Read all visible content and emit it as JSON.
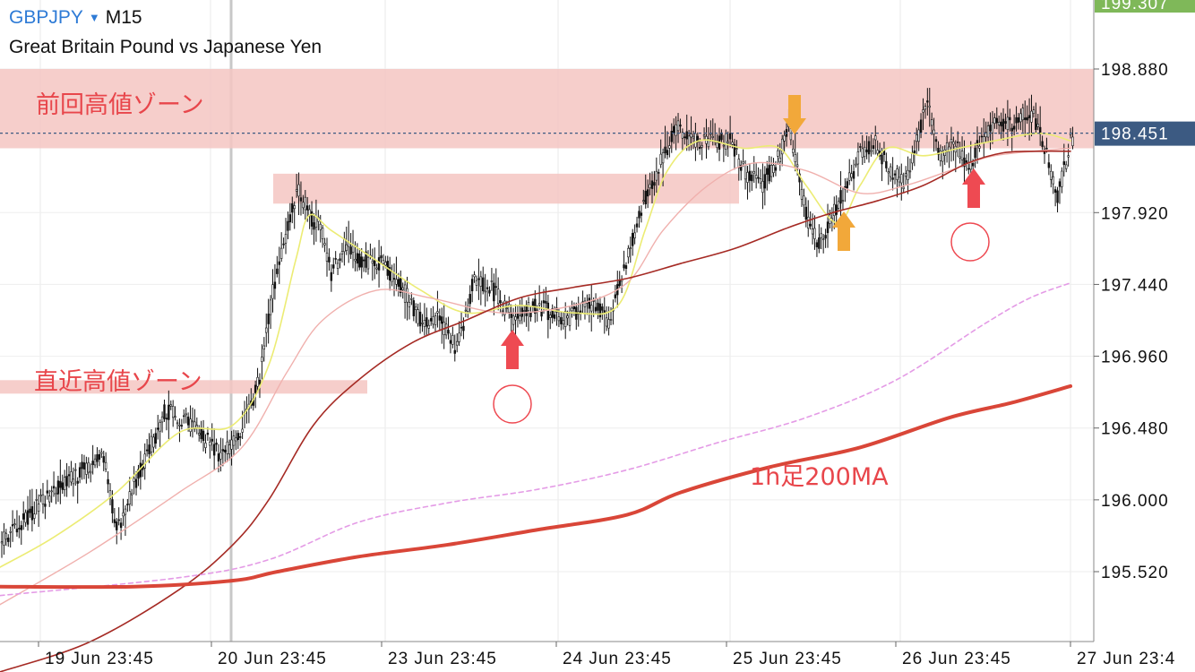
{
  "header": {
    "symbol": "GBPJPY",
    "timeframe": "M15",
    "description": "Great Britain Pound vs Japanese Yen",
    "dropdown_icon": "caret-down-icon"
  },
  "colors": {
    "zone": "#f4c6c2",
    "annotation_text": "#e8464b",
    "red_arrow": "#ee4a52",
    "orange_arrow": "#f2a83a",
    "ma_short": "#ecec74",
    "ma_long": "#a52a24",
    "ma_1h200": "#d94638",
    "ma_dashed": "#e49be6",
    "current_price_box": "#3c5a82",
    "top_price_box": "#7fb859"
  },
  "chart_data": {
    "type": "candlestick",
    "symbol": "GBPJPY",
    "timeframe": "M15",
    "y_axis": {
      "min": 195.2,
      "max": 199.3,
      "ticks": [
        "198.880",
        "197.920",
        "197.440",
        "196.960",
        "196.480",
        "196.000",
        "195.520"
      ]
    },
    "x_axis": {
      "labels": [
        "19 Jun 23:45",
        "20 Jun 23:45",
        "23 Jun 23:45",
        "24 Jun 23:45",
        "25 Jun 23:45",
        "26 Jun 23:45",
        "27 Jun 23:4"
      ]
    },
    "current_price": "198.451",
    "top_price": "199.307",
    "price_path": [
      [
        0,
        195.7
      ],
      [
        50,
        196.0
      ],
      [
        115,
        196.3
      ],
      [
        130,
        195.8
      ],
      [
        185,
        196.6
      ],
      [
        215,
        196.5
      ],
      [
        245,
        196.3
      ],
      [
        265,
        196.4
      ],
      [
        290,
        196.8
      ],
      [
        305,
        197.4
      ],
      [
        325,
        197.9
      ],
      [
        332,
        198.1
      ],
      [
        345,
        197.9
      ],
      [
        360,
        197.8
      ],
      [
        370,
        197.5
      ],
      [
        385,
        197.7
      ],
      [
        400,
        197.6
      ],
      [
        420,
        197.6
      ],
      [
        440,
        197.5
      ],
      [
        470,
        197.2
      ],
      [
        490,
        197.2
      ],
      [
        510,
        197.0
      ],
      [
        530,
        197.5
      ],
      [
        550,
        197.4
      ],
      [
        575,
        197.2
      ],
      [
        600,
        197.3
      ],
      [
        630,
        197.2
      ],
      [
        660,
        197.3
      ],
      [
        680,
        197.2
      ],
      [
        700,
        197.6
      ],
      [
        720,
        198.0
      ],
      [
        740,
        198.3
      ],
      [
        755,
        198.5
      ],
      [
        775,
        198.4
      ],
      [
        795,
        198.4
      ],
      [
        815,
        198.4
      ],
      [
        830,
        198.2
      ],
      [
        850,
        198.1
      ],
      [
        870,
        198.3
      ],
      [
        882,
        198.5
      ],
      [
        890,
        198.2
      ],
      [
        900,
        197.9
      ],
      [
        915,
        197.7
      ],
      [
        930,
        197.9
      ],
      [
        945,
        198.1
      ],
      [
        960,
        198.3
      ],
      [
        975,
        198.4
      ],
      [
        995,
        198.2
      ],
      [
        1010,
        198.1
      ],
      [
        1020,
        198.3
      ],
      [
        1035,
        198.7
      ],
      [
        1050,
        198.3
      ],
      [
        1065,
        198.4
      ],
      [
        1080,
        198.2
      ],
      [
        1095,
        198.4
      ],
      [
        1110,
        198.5
      ],
      [
        1130,
        198.5
      ],
      [
        1150,
        198.6
      ],
      [
        1165,
        198.4
      ],
      [
        1180,
        198.0
      ],
      [
        1195,
        198.4
      ]
    ],
    "moving_averages": [
      {
        "style": "short",
        "points": [
          [
            0,
            195.55
          ],
          [
            60,
            195.75
          ],
          [
            130,
            196.05
          ],
          [
            200,
            196.45
          ],
          [
            260,
            196.5
          ],
          [
            300,
            196.9
          ],
          [
            330,
            197.6
          ],
          [
            345,
            197.9
          ],
          [
            370,
            197.8
          ],
          [
            420,
            197.6
          ],
          [
            470,
            197.4
          ],
          [
            520,
            197.25
          ],
          [
            580,
            197.3
          ],
          [
            640,
            197.25
          ],
          [
            690,
            197.3
          ],
          [
            720,
            197.8
          ],
          [
            745,
            198.2
          ],
          [
            780,
            198.4
          ],
          [
            830,
            198.35
          ],
          [
            870,
            198.35
          ],
          [
            900,
            198.1
          ],
          [
            935,
            197.85
          ],
          [
            960,
            198.1
          ],
          [
            990,
            198.35
          ],
          [
            1030,
            198.3
          ],
          [
            1070,
            198.35
          ],
          [
            1110,
            198.4
          ],
          [
            1160,
            198.45
          ],
          [
            1195,
            198.4
          ]
        ]
      },
      {
        "style": "medium",
        "points": [
          [
            0,
            195.3
          ],
          [
            100,
            195.65
          ],
          [
            200,
            196.05
          ],
          [
            270,
            196.35
          ],
          [
            320,
            196.85
          ],
          [
            360,
            197.2
          ],
          [
            420,
            197.4
          ],
          [
            480,
            197.35
          ],
          [
            560,
            197.25
          ],
          [
            640,
            197.3
          ],
          [
            700,
            197.45
          ],
          [
            740,
            197.8
          ],
          [
            790,
            198.1
          ],
          [
            840,
            198.25
          ],
          [
            900,
            198.2
          ],
          [
            960,
            198.05
          ],
          [
            1010,
            198.1
          ],
          [
            1060,
            198.2
          ],
          [
            1110,
            198.3
          ],
          [
            1195,
            198.35
          ]
        ]
      },
      {
        "style": "long",
        "points": [
          [
            0,
            194.85
          ],
          [
            100,
            195.05
          ],
          [
            200,
            195.4
          ],
          [
            260,
            195.7
          ],
          [
            300,
            196.0
          ],
          [
            350,
            196.5
          ],
          [
            400,
            196.8
          ],
          [
            460,
            197.05
          ],
          [
            520,
            197.2
          ],
          [
            580,
            197.35
          ],
          [
            640,
            197.42
          ],
          [
            700,
            197.48
          ],
          [
            760,
            197.58
          ],
          [
            820,
            197.68
          ],
          [
            880,
            197.82
          ],
          [
            930,
            197.92
          ],
          [
            980,
            198.0
          ],
          [
            1030,
            198.1
          ],
          [
            1080,
            198.25
          ],
          [
            1120,
            198.32
          ],
          [
            1160,
            198.33
          ],
          [
            1195,
            198.33
          ]
        ]
      },
      {
        "style": "dashed",
        "points": [
          [
            0,
            195.36
          ],
          [
            200,
            195.48
          ],
          [
            300,
            195.6
          ],
          [
            400,
            195.85
          ],
          [
            500,
            195.98
          ],
          [
            600,
            196.07
          ],
          [
            700,
            196.2
          ],
          [
            800,
            196.38
          ],
          [
            900,
            196.55
          ],
          [
            1000,
            196.8
          ],
          [
            1100,
            197.18
          ],
          [
            1150,
            197.35
          ],
          [
            1195,
            197.45
          ]
        ]
      },
      {
        "style": "h1_200",
        "points": [
          [
            0,
            195.42
          ],
          [
            150,
            195.42
          ],
          [
            260,
            195.46
          ],
          [
            310,
            195.52
          ],
          [
            400,
            195.62
          ],
          [
            500,
            195.7
          ],
          [
            600,
            195.8
          ],
          [
            700,
            195.9
          ],
          [
            760,
            196.05
          ],
          [
            860,
            196.22
          ],
          [
            960,
            196.35
          ],
          [
            1060,
            196.55
          ],
          [
            1130,
            196.65
          ],
          [
            1195,
            196.76
          ]
        ]
      }
    ],
    "zones": [
      {
        "label": "前回高値ゾーン",
        "y_from": 198.35,
        "y_to": 198.88
      },
      {
        "label": "",
        "y_from": 197.98,
        "y_to": 198.18
      },
      {
        "label": "直近高値ゾーン",
        "y_from": 196.71,
        "y_to": 196.8
      }
    ],
    "annotations": {
      "zone_label_recent_high": "直近高値ゾーン",
      "zone_label_prev_high": "前回高値ゾーン",
      "ma_label": "1h足200MA"
    }
  }
}
